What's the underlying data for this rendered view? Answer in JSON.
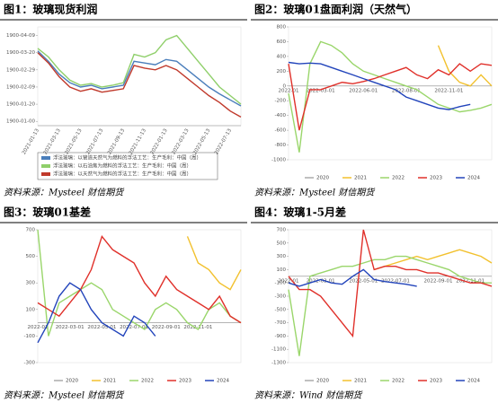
{
  "chart_data": [
    {
      "type": "line",
      "title": "图1：玻璃现货利润",
      "source": "资料来源：Mysteel 财信期货",
      "categories": [
        "2021-01-13",
        null,
        "2021-03-13",
        null,
        "2021-05-13",
        null,
        "2021-07-13",
        null,
        "2021-09-13",
        null,
        "2021-11-13",
        null,
        "2022-01-13",
        null,
        "2022-03-13",
        null,
        "2022-05-13",
        null,
        "2022-07-13",
        null
      ],
      "ylim": [
        -5,
        110
      ],
      "yticks": [
        {
          "value": 0,
          "label": "1900-01-00"
        },
        {
          "value": 20,
          "label": "1900-01-20"
        },
        {
          "value": 40,
          "label": "1900-02-09"
        },
        {
          "value": 60,
          "label": "1900-02-29"
        },
        {
          "value": 80,
          "label": "1900-03-20"
        },
        {
          "value": 100,
          "label": "1900-04-09"
        }
      ],
      "legend": "bottom-left",
      "series": [
        {
          "name": "浮法玻璃：以管道天然气为燃料的浮法工艺：生产毛利：中国（周）",
          "color": "#4a7ebb",
          "values": [
            82,
            70,
            55,
            45,
            40,
            42,
            38,
            40,
            42,
            70,
            68,
            66,
            72,
            70,
            60,
            50,
            40,
            32,
            25,
            18
          ]
        },
        {
          "name": "浮法玻璃：以石油焦为燃料的浮法工艺：生产毛利：中国（周）",
          "color": "#8fcf6a",
          "values": [
            85,
            75,
            60,
            48,
            42,
            44,
            40,
            42,
            45,
            78,
            75,
            80,
            95,
            100,
            85,
            70,
            55,
            40,
            30,
            20
          ]
        },
        {
          "name": "浮法玻璃：以天然气为燃料的浮法工艺：生产毛利：中国（周）",
          "color": "#c0392b",
          "values": [
            80,
            68,
            52,
            40,
            35,
            38,
            34,
            36,
            38,
            65,
            62,
            60,
            65,
            60,
            50,
            40,
            30,
            22,
            12,
            5
          ]
        }
      ]
    },
    {
      "type": "line",
      "title": "图2：玻璃01盘面利润（天然气）",
      "source": "资料来源：Mysteel 财信期货",
      "categories": [
        "2022-01",
        null,
        null,
        "2022-03-01",
        null,
        null,
        null,
        "2022-06-01",
        null,
        null,
        null,
        "2022-08-01",
        null,
        null,
        null,
        "2022-11-01",
        null,
        null,
        null,
        null
      ],
      "ylim": [
        -1000,
        800
      ],
      "yticks": [
        -1000,
        -800,
        -600,
        -400,
        -200,
        0,
        200,
        400,
        600,
        800
      ],
      "legend": "bottom",
      "series": [
        {
          "name": "2020",
          "color": "#aaaaaa",
          "values": [
            null,
            null,
            null,
            null,
            null,
            null,
            null,
            null,
            null,
            null,
            null,
            null,
            null,
            null,
            null,
            null,
            null,
            null,
            null,
            null
          ]
        },
        {
          "name": "2021",
          "color": "#f2c12e",
          "values": [
            null,
            null,
            null,
            null,
            null,
            null,
            null,
            null,
            null,
            null,
            null,
            null,
            null,
            null,
            550,
            200,
            50,
            0,
            150,
            0
          ]
        },
        {
          "name": "2022",
          "color": "#9ad66b",
          "values": [
            -100,
            -900,
            300,
            600,
            550,
            450,
            300,
            200,
            150,
            100,
            50,
            0,
            -50,
            -150,
            -250,
            -300,
            -350,
            -330,
            -300,
            -250
          ]
        },
        {
          "name": "2023",
          "color": "#e0302a",
          "values": [
            300,
            -600,
            -50,
            -50,
            0,
            50,
            30,
            60,
            100,
            150,
            200,
            250,
            150,
            100,
            220,
            150,
            300,
            200,
            300,
            280
          ]
        },
        {
          "name": "2024",
          "color": "#2244bb",
          "values": [
            320,
            300,
            310,
            300,
            250,
            200,
            150,
            100,
            50,
            0,
            -50,
            -150,
            -200,
            -250,
            -300,
            -320,
            -280,
            -250,
            null,
            null
          ]
        }
      ]
    },
    {
      "type": "line",
      "title": "图3：玻璃01基差",
      "source": "资料来源：Mysteel 财信期货",
      "categories": [
        "2022-01",
        null,
        null,
        "2022-03-01",
        null,
        null,
        "2022-05-01",
        null,
        null,
        "2022-07-01",
        null,
        null,
        "2022-09-01",
        null,
        null,
        "2022-11-01",
        null,
        null,
        null,
        null
      ],
      "ylim": [
        -300,
        700
      ],
      "yticks": [
        -300,
        -100,
        100,
        300,
        500,
        700
      ],
      "legend": "bottom",
      "series": [
        {
          "name": "2020",
          "color": "#aaaaaa",
          "values": [
            null,
            null,
            null,
            null,
            null,
            null,
            null,
            null,
            null,
            null,
            null,
            null,
            null,
            null,
            null,
            null,
            null,
            null,
            null,
            null
          ]
        },
        {
          "name": "2021",
          "color": "#f2c12e",
          "values": [
            null,
            null,
            null,
            null,
            null,
            null,
            null,
            null,
            null,
            null,
            null,
            null,
            null,
            null,
            650,
            450,
            400,
            300,
            250,
            400
          ]
        },
        {
          "name": "2022",
          "color": "#9ad66b",
          "values": [
            700,
            -100,
            150,
            200,
            250,
            300,
            250,
            100,
            50,
            0,
            -50,
            100,
            150,
            100,
            0,
            -50,
            100,
            150,
            50,
            0
          ]
        },
        {
          "name": "2023",
          "color": "#e0302a",
          "values": [
            150,
            100,
            50,
            150,
            250,
            400,
            650,
            550,
            500,
            450,
            300,
            200,
            350,
            250,
            200,
            150,
            100,
            200,
            50,
            0
          ]
        },
        {
          "name": "2024",
          "color": "#2244bb",
          "values": [
            -150,
            0,
            200,
            300,
            250,
            100,
            0,
            -50,
            -100,
            50,
            0,
            -100,
            null,
            null,
            null,
            null,
            null,
            null,
            null,
            null
          ]
        }
      ]
    },
    {
      "type": "line",
      "title": "图4：玻璃1-5月差",
      "source": "资料来源：Wind 财信期货",
      "categories": [
        "2022-01",
        null,
        null,
        "2022-03-01",
        null,
        null,
        null,
        "2022-05-01",
        null,
        null,
        "2022-07-01",
        null,
        null,
        null,
        "2022-09-01",
        null,
        null,
        "2022-11-01",
        null,
        null
      ],
      "ylim": [
        -1300,
        700
      ],
      "yticks": [
        -1300,
        -1100,
        -900,
        -700,
        -500,
        -300,
        -100,
        100,
        300,
        500,
        700
      ],
      "legend": "bottom",
      "series": [
        {
          "name": "2020",
          "color": "#aaaaaa",
          "values": [
            null,
            null,
            null,
            null,
            null,
            null,
            null,
            null,
            null,
            null,
            null,
            null,
            null,
            null,
            null,
            null,
            null,
            null,
            null,
            null
          ]
        },
        {
          "name": "2021",
          "color": "#f2c12e",
          "values": [
            null,
            null,
            null,
            null,
            null,
            null,
            null,
            null,
            100,
            150,
            200,
            250,
            300,
            250,
            300,
            350,
            400,
            350,
            300,
            200
          ]
        },
        {
          "name": "2022",
          "color": "#9ad66b",
          "values": [
            -200,
            -1200,
            0,
            50,
            100,
            150,
            150,
            200,
            250,
            250,
            300,
            300,
            250,
            200,
            150,
            100,
            0,
            -50,
            -100,
            -100
          ]
        },
        {
          "name": "2023",
          "color": "#e0302a",
          "values": [
            0,
            -200,
            -200,
            -300,
            -500,
            -700,
            -900,
            700,
            100,
            150,
            150,
            100,
            100,
            50,
            50,
            0,
            -50,
            -100,
            -100,
            -150
          ]
        },
        {
          "name": "2024",
          "color": "#2244bb",
          "values": [
            -100,
            -150,
            -100,
            -50,
            -100,
            -120,
            0,
            100,
            -50,
            -80,
            -100,
            -120,
            -150,
            null,
            null,
            null,
            null,
            null,
            null,
            null
          ]
        }
      ]
    }
  ]
}
